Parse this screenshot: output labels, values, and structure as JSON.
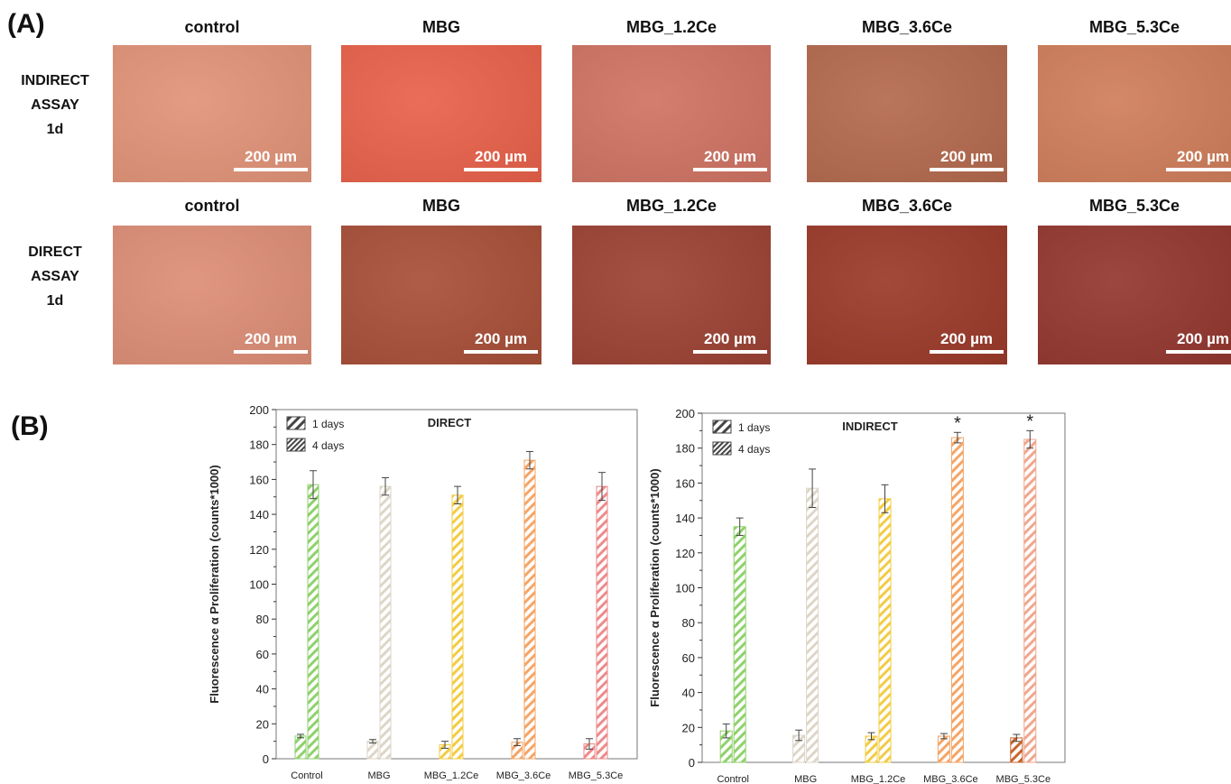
{
  "panel_a": {
    "label": "(A)",
    "scale_text": "200 µm",
    "rows": [
      {
        "label_lines": [
          "INDIRECT",
          "ASSAY",
          "1d"
        ],
        "cells": [
          {
            "title": "control",
            "color": "#e19378"
          },
          {
            "title": "MBG",
            "color": "#e8614a"
          },
          {
            "title": "MBG_1.2Ce",
            "color": "#cf7363"
          },
          {
            "title": "MBG_3.6Ce",
            "color": "#b46a4e"
          },
          {
            "title": "MBG_5.3Ce",
            "color": "#d07e5b"
          }
        ]
      },
      {
        "label_lines": [
          "DIRECT",
          "ASSAY",
          "1d"
        ],
        "cells": [
          {
            "title": "control",
            "color": "#dd8e77"
          },
          {
            "title": "MBG",
            "color": "#a84f38"
          },
          {
            "title": "MBG_1.2Ce",
            "color": "#9c4234"
          },
          {
            "title": "MBG_3.6Ce",
            "color": "#9b3a2a"
          },
          {
            "title": "MBG_5.3Ce",
            "color": "#943730"
          }
        ]
      }
    ]
  },
  "panel_b": {
    "label": "(B)"
  },
  "chart_data": [
    {
      "type": "bar",
      "title": "DIRECT",
      "ylabel": "Fluorescence α Proliferation (counts*1000)",
      "ylim": [
        0,
        200
      ],
      "yticks": [
        "0",
        "20",
        "40",
        "60",
        "80",
        "100",
        "120",
        "140",
        "160",
        "180",
        "200"
      ],
      "categories": [
        "Control",
        "MBG",
        "MBG_1.2Ce",
        "MBG_3.6Ce",
        "MBG_5.3Ce"
      ],
      "series": [
        {
          "name": "1 days",
          "values": [
            13,
            10,
            8,
            9.5,
            8.5
          ],
          "errors": [
            1,
            1,
            2,
            2,
            3
          ]
        },
        {
          "name": "4 days",
          "values": [
            157,
            156,
            151,
            171,
            156
          ],
          "errors": [
            8,
            5,
            5,
            5,
            8
          ]
        }
      ],
      "stars": [],
      "legend": "top-left",
      "bar_colors": [
        "#8fd16b",
        "#ddd6c8",
        "#f2cc44",
        "#f5a566",
        "#ee8a8a"
      ]
    },
    {
      "type": "bar",
      "title": "INDIRECT",
      "ylabel": "Fluorescence α Proliferation (counts*1000)",
      "ylim": [
        0,
        200
      ],
      "yticks": [
        "0",
        "20",
        "40",
        "60",
        "80",
        "100",
        "120",
        "140",
        "160",
        "180",
        "200"
      ],
      "categories": [
        "Control",
        "MBG",
        "MBG_1.2Ce",
        "MBG_3.6Ce",
        "MBG_5.3Ce"
      ],
      "series": [
        {
          "name": "1 days",
          "values": [
            18,
            15.5,
            15,
            15,
            14
          ],
          "errors": [
            4,
            3,
            2,
            1.5,
            2
          ]
        },
        {
          "name": "4 days",
          "values": [
            135,
            157,
            151,
            186,
            185
          ],
          "errors": [
            5,
            11,
            8,
            3,
            5
          ]
        }
      ],
      "stars": [
        "",
        "",
        "",
        "*",
        "*"
      ],
      "legend": "top-left",
      "bar_colors": [
        "#8fd16b",
        "#ddd6c8",
        "#f2cc44",
        "#f5a566",
        "#f0a68e"
      ],
      "bar_colors_1d": [
        "#8fd16b",
        "#ddd6c8",
        "#f2cc44",
        "#f5a566",
        "#c8642c"
      ]
    }
  ]
}
